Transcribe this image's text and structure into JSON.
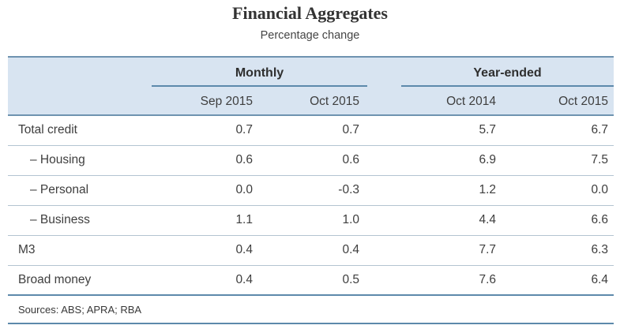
{
  "chart_data": {
    "type": "table",
    "title": "Financial Aggregates",
    "subtitle": "Percentage change",
    "column_groups": [
      {
        "label": "Monthly",
        "columns": [
          "Sep 2015",
          "Oct 2015"
        ]
      },
      {
        "label": "Year-ended",
        "columns": [
          "Oct 2014",
          "Oct 2015"
        ]
      }
    ],
    "columns": [
      "Sep 2015",
      "Oct 2015",
      "Oct 2014",
      "Oct 2015"
    ],
    "rows": [
      {
        "label": "Total credit",
        "indent": false,
        "values": [
          0.7,
          0.7,
          5.7,
          6.7
        ]
      },
      {
        "label": "– Housing",
        "indent": true,
        "values": [
          0.6,
          0.6,
          6.9,
          7.5
        ]
      },
      {
        "label": "– Personal",
        "indent": true,
        "values": [
          0.0,
          -0.3,
          1.2,
          0.0
        ]
      },
      {
        "label": "– Business",
        "indent": true,
        "values": [
          1.1,
          1.0,
          4.4,
          6.6
        ]
      },
      {
        "label": "M3",
        "indent": false,
        "values": [
          0.4,
          0.4,
          7.7,
          6.3
        ]
      },
      {
        "label": "Broad money",
        "indent": false,
        "values": [
          0.4,
          0.5,
          7.6,
          6.4
        ]
      }
    ],
    "sources": "Sources: ABS; APRA; RBA"
  },
  "colors": {
    "header_bg": "#d8e4f1",
    "heavy_rule": "#6e93b0",
    "group_rule": "#5d89ab",
    "row_rule": "#b3c4d1",
    "text": "#3e3e3e",
    "title_text": "#333333"
  }
}
